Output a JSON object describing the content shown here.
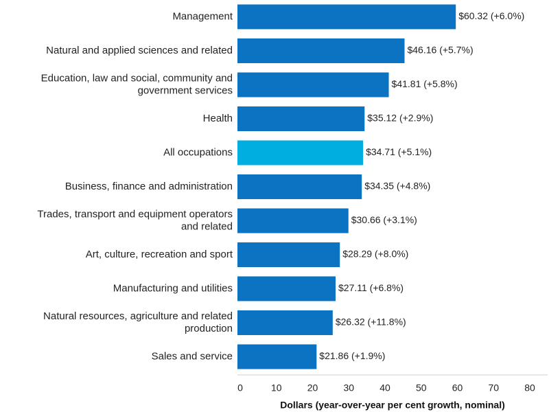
{
  "chart_data": {
    "type": "bar",
    "orientation": "horizontal",
    "categories": [
      [
        "Management"
      ],
      [
        "Natural and applied sciences and related"
      ],
      [
        "Education, law and social, community and",
        "government services"
      ],
      [
        "Health"
      ],
      [
        "All occupations"
      ],
      [
        "Business, finance and administration"
      ],
      [
        "Trades, transport and equipment operators",
        "and related"
      ],
      [
        "Art, culture, recreation and sport"
      ],
      [
        "Manufacturing and utilities"
      ],
      [
        "Natural resources, agriculture and related",
        "production"
      ],
      [
        "Sales and service"
      ]
    ],
    "values": [
      60.32,
      46.16,
      41.81,
      35.12,
      34.71,
      34.35,
      30.66,
      28.29,
      27.11,
      26.32,
      21.86
    ],
    "data_labels": [
      "$60.32 (+6.0%)",
      "$46.16 (+5.7%)",
      "$41.81 (+5.8%)",
      "$35.12 (+2.9%)",
      "$34.71 (+5.1%)",
      "$34.35 (+4.8%)",
      "$30.66 (+3.1%)",
      "$28.29 (+8.0%)",
      "$27.11 (+6.8%)",
      "$26.32 (+11.8%)",
      "$21.86 (+1.9%)"
    ],
    "highlight_index": 4,
    "xlabel": "Dollars (year-over-year per cent growth, nominal)",
    "ylabel": "",
    "xlim": [
      0,
      80
    ],
    "xticks": [
      0,
      10,
      20,
      30,
      40,
      50,
      60,
      70,
      80
    ],
    "grid": false,
    "legend": "none",
    "colors": {
      "bar": "#0b73c2",
      "highlight": "#00aee0"
    }
  }
}
